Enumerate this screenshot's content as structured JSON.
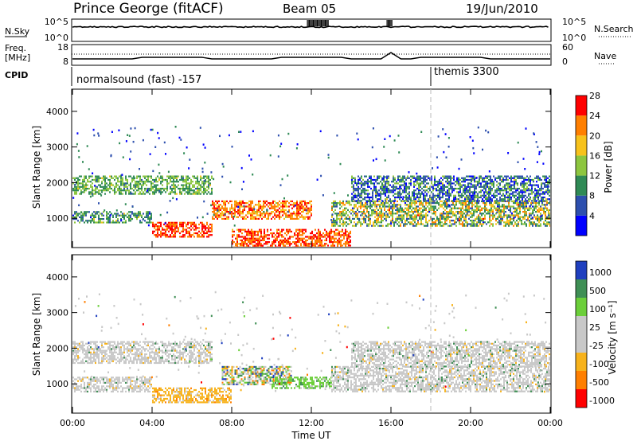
{
  "header": {
    "station": "Prince George (fitACF)",
    "beam": "Beam 05",
    "date": "19/Jun/2010"
  },
  "top_panels": {
    "nsky_label": "N.Sky",
    "nsky_ticks": [
      "10^5",
      "10^0"
    ],
    "nsearch_label": "N.Search",
    "nsearch_ticks": [
      "10^5",
      "10^0"
    ],
    "freq_label": "Freq.",
    "freq_unit": "[MHz]",
    "freq_ticks": [
      "18",
      "8"
    ],
    "nave_label": "Nave",
    "nave_ticks": [
      "60",
      "0"
    ],
    "cpid_label": "CPID",
    "cpid_segments": [
      {
        "label": "normalsound (fast) -157",
        "start_hour": 0
      },
      {
        "label": "themis 3300",
        "start_hour": 18
      }
    ]
  },
  "chart_data": [
    {
      "type": "heatmap",
      "name": "power",
      "ylabel": "Slant Range [km]",
      "xlabel": "",
      "yticks": [
        "1000",
        "2000",
        "3000",
        "4000"
      ],
      "ylim": [
        200,
        4600
      ],
      "xlim": [
        0,
        24
      ],
      "xticks_hours": [
        0,
        4,
        8,
        12,
        16,
        20,
        24
      ],
      "colorbar": {
        "label": "Power [dB]",
        "ticks": [
          "4",
          "8",
          "12",
          "16",
          "20",
          "24",
          "28"
        ],
        "colors": [
          "#0000ff",
          "#2d4fae",
          "#2f8a55",
          "#8dc63f",
          "#f7c21b",
          "#ff7f00",
          "#ff0000"
        ]
      },
      "bands": [
        {
          "x0": 0.0,
          "x1": 7.0,
          "y0": 1700,
          "y1": 2200,
          "dominant": "12-16 dB"
        },
        {
          "x0": 0.0,
          "x1": 4.0,
          "y0": 900,
          "y1": 1200,
          "dominant": "8-16 dB"
        },
        {
          "x0": 4.0,
          "x1": 7.0,
          "y0": 500,
          "y1": 900,
          "dominant": "24-28 dB"
        },
        {
          "x0": 7.0,
          "x1": 12.0,
          "y0": 1000,
          "y1": 1500,
          "dominant": "20-28 dB"
        },
        {
          "x0": 8.0,
          "x1": 14.0,
          "y0": 200,
          "y1": 700,
          "dominant": "24-28 dB"
        },
        {
          "x0": 13.0,
          "x1": 24.0,
          "y0": 800,
          "y1": 1500,
          "dominant": "8-24 dB"
        },
        {
          "x0": 14.0,
          "x1": 24.0,
          "y0": 1500,
          "y1": 2200,
          "dominant": "4-16 dB"
        }
      ]
    },
    {
      "type": "heatmap",
      "name": "velocity",
      "ylabel": "Slant Range [km]",
      "xlabel": "Time UT",
      "yticks": [
        "1000",
        "2000",
        "3000",
        "4000"
      ],
      "ylim": [
        200,
        4600
      ],
      "xlim": [
        0,
        24
      ],
      "xticks": [
        "00:00",
        "04:00",
        "08:00",
        "12:00",
        "16:00",
        "20:00",
        "00:00"
      ],
      "xticks_hours": [
        0,
        4,
        8,
        12,
        16,
        20,
        24
      ],
      "colorbar": {
        "label": "Velocity [m s⁻¹]",
        "ticks": [
          "1000",
          "500",
          "100",
          "25",
          "-25",
          "-100",
          "-500",
          "-1000"
        ],
        "colors": [
          "#1f3fbf",
          "#3f8f55",
          "#6ccf3a",
          "#c8c8c8",
          "#c8c8c8",
          "#f7b21b",
          "#ff7f00",
          "#ff0000"
        ]
      },
      "bands": [
        {
          "x0": 0.0,
          "x1": 7.0,
          "y0": 1600,
          "y1": 2200,
          "dominant": "-25 to 25"
        },
        {
          "x0": 0.0,
          "x1": 4.0,
          "y0": 800,
          "y1": 1200,
          "dominant": "-25 to 25"
        },
        {
          "x0": 4.0,
          "x1": 8.0,
          "y0": 500,
          "y1": 900,
          "dominant": "-100 to -25"
        },
        {
          "x0": 7.5,
          "x1": 11.0,
          "y0": 1000,
          "y1": 1500,
          "dominant": "-500 to 1000"
        },
        {
          "x0": 10.0,
          "x1": 13.0,
          "y0": 900,
          "y1": 1200,
          "dominant": "100 to 500"
        },
        {
          "x0": 13.0,
          "x1": 24.0,
          "y0": 800,
          "y1": 1500,
          "dominant": "-25 to 25"
        },
        {
          "x0": 14.0,
          "x1": 24.0,
          "y0": 1500,
          "y1": 2200,
          "dominant": "-25 to 25"
        }
      ]
    }
  ]
}
